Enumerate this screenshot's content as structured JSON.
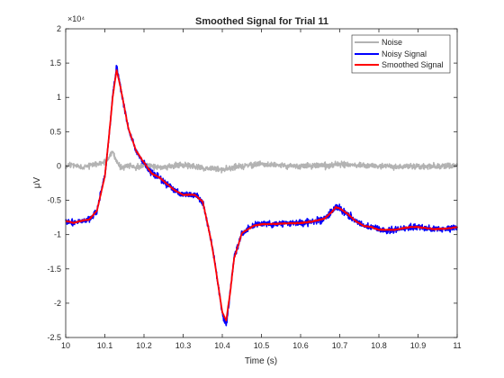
{
  "chart_data": {
    "type": "line",
    "title": "Smoothed Signal for Trial 11",
    "xlabel": "Time (s)",
    "ylabel": "μV",
    "xlim": [
      10,
      11
    ],
    "ylim": [
      -25000,
      20000
    ],
    "y_exponent_label": "×10⁴",
    "x_ticks": [
      10,
      10.1,
      10.2,
      10.3,
      10.4,
      10.5,
      10.6,
      10.7,
      10.8,
      10.9,
      11
    ],
    "x_tick_labels": [
      "10",
      "10.1",
      "10.2",
      "10.3",
      "10.4",
      "10.5",
      "10.6",
      "10.7",
      "10.8",
      "10.9",
      "11"
    ],
    "y_ticks": [
      -25000,
      -20000,
      -15000,
      -10000,
      -5000,
      0,
      5000,
      10000,
      15000,
      20000
    ],
    "y_tick_labels": [
      "-2.5",
      "-2",
      "-1.5",
      "-1",
      "-0.5",
      "0",
      "0.5",
      "1",
      "1.5",
      "2"
    ],
    "grid": false,
    "legend_position": "top-right",
    "series": [
      {
        "name": "Noise",
        "color": "#b3b3b3",
        "style": "noise",
        "x": [
          10,
          10.02,
          10.04,
          10.06,
          10.08,
          10.1,
          10.11,
          10.12,
          10.13,
          10.14,
          10.16,
          10.18,
          10.2,
          10.25,
          10.3,
          10.35,
          10.4,
          10.45,
          10.5,
          10.6,
          10.7,
          10.8,
          10.9,
          11
        ],
        "values": [
          0,
          200,
          -300,
          100,
          300,
          500,
          1200,
          2200,
          600,
          -300,
          200,
          -200,
          100,
          -200,
          200,
          -300,
          -500,
          0,
          300,
          -100,
          200,
          0,
          -100,
          0
        ]
      },
      {
        "name": "Noisy Signal",
        "color": "#0000ff",
        "style": "noisy",
        "x": [
          10,
          10.02,
          10.04,
          10.06,
          10.08,
          10.1,
          10.11,
          10.12,
          10.13,
          10.14,
          10.16,
          10.18,
          10.2,
          10.22,
          10.24,
          10.26,
          10.28,
          10.3,
          10.33,
          10.35,
          10.36,
          10.37,
          10.38,
          10.39,
          10.4,
          10.41,
          10.42,
          10.43,
          10.45,
          10.48,
          10.5,
          10.55,
          10.6,
          10.63,
          10.66,
          10.68,
          10.69,
          10.7,
          10.72,
          10.74,
          10.76,
          10.78,
          10.8,
          10.84,
          10.88,
          10.9,
          10.94,
          10.98,
          11
        ],
        "values": [
          -8000,
          -8300,
          -8000,
          -7800,
          -6500,
          -1500,
          4000,
          10000,
          14500,
          11500,
          5500,
          2200,
          500,
          -1100,
          -1700,
          -2700,
          -3600,
          -4200,
          -4200,
          -5200,
          -7800,
          -10500,
          -13800,
          -17600,
          -21500,
          -23200,
          -18500,
          -13500,
          -9800,
          -8700,
          -8500,
          -8400,
          -8300,
          -8100,
          -7700,
          -6700,
          -6000,
          -6200,
          -7000,
          -8000,
          -8700,
          -8900,
          -9300,
          -9300,
          -8900,
          -8900,
          -9200,
          -9100,
          -8900
        ]
      },
      {
        "name": "Smoothed Signal",
        "color": "#ff0000",
        "style": "smooth",
        "x": [
          10,
          10.02,
          10.04,
          10.06,
          10.08,
          10.1,
          10.11,
          10.12,
          10.13,
          10.14,
          10.16,
          10.18,
          10.2,
          10.22,
          10.24,
          10.26,
          10.28,
          10.3,
          10.33,
          10.35,
          10.36,
          10.37,
          10.38,
          10.39,
          10.4,
          10.41,
          10.42,
          10.43,
          10.45,
          10.48,
          10.5,
          10.55,
          10.6,
          10.63,
          10.66,
          10.68,
          10.69,
          10.7,
          10.72,
          10.74,
          10.76,
          10.78,
          10.8,
          10.84,
          10.88,
          10.9,
          10.94,
          10.98,
          11
        ],
        "values": [
          -8000,
          -8300,
          -8000,
          -7800,
          -6500,
          -1500,
          4000,
          10000,
          14000,
          11500,
          5500,
          2200,
          500,
          -1100,
          -1700,
          -2700,
          -3600,
          -4200,
          -4200,
          -5200,
          -7800,
          -10500,
          -13800,
          -17600,
          -21300,
          -22500,
          -18500,
          -13500,
          -9800,
          -8700,
          -8500,
          -8400,
          -8300,
          -8100,
          -7700,
          -6700,
          -6000,
          -6200,
          -7000,
          -8000,
          -8700,
          -8900,
          -9300,
          -9300,
          -8900,
          -8900,
          -9200,
          -9100,
          -8900
        ]
      }
    ]
  }
}
